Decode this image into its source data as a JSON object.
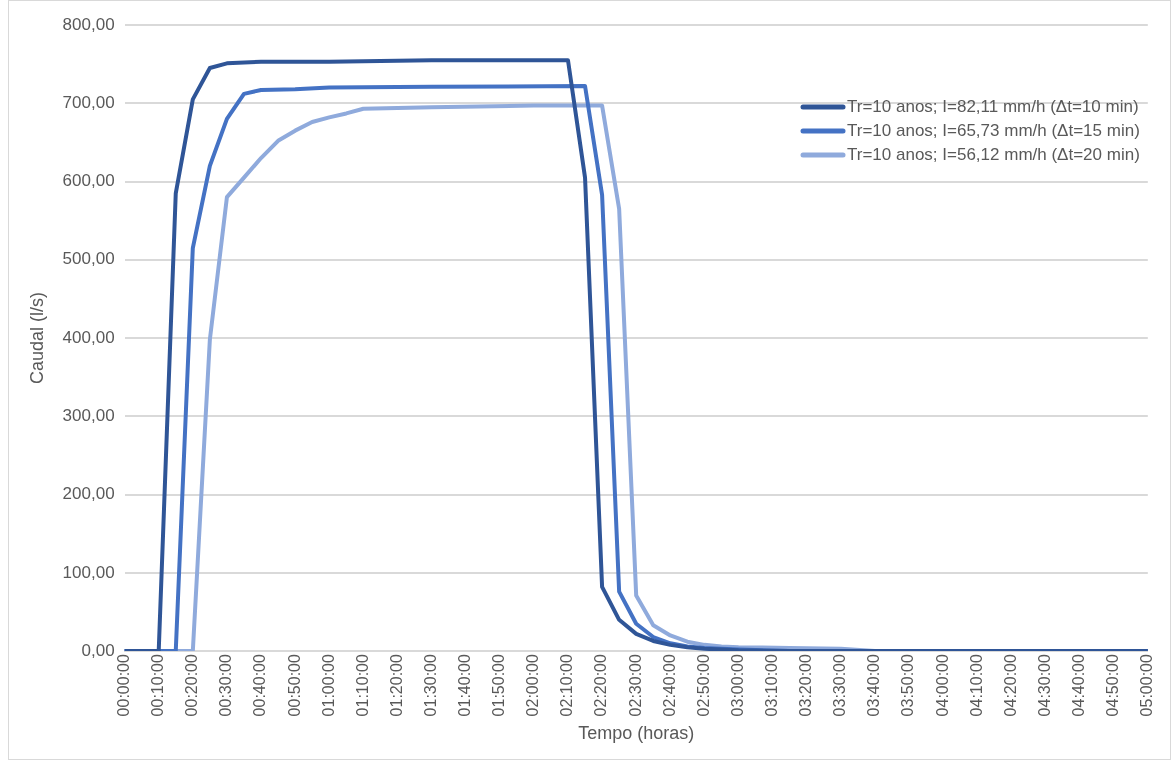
{
  "chart_data": {
    "type": "line",
    "xlabel": "Tempo (horas)",
    "ylabel": "Caudal (l/s)",
    "xlim": [
      0,
      5
    ],
    "xticks": [
      {
        "value": 0,
        "label": "00:00:00"
      },
      {
        "value": 0.16667,
        "label": "00:10:00"
      },
      {
        "value": 0.33333,
        "label": "00:20:00"
      },
      {
        "value": 0.5,
        "label": "00:30:00"
      },
      {
        "value": 0.66667,
        "label": "00:40:00"
      },
      {
        "value": 0.83333,
        "label": "00:50:00"
      },
      {
        "value": 1,
        "label": "01:00:00"
      },
      {
        "value": 1.16667,
        "label": "01:10:00"
      },
      {
        "value": 1.33333,
        "label": "01:20:00"
      },
      {
        "value": 1.5,
        "label": "01:30:00"
      },
      {
        "value": 1.66667,
        "label": "01:40:00"
      },
      {
        "value": 1.83333,
        "label": "01:50:00"
      },
      {
        "value": 2,
        "label": "02:00:00"
      },
      {
        "value": 2.16667,
        "label": "02:10:00"
      },
      {
        "value": 2.33333,
        "label": "02:20:00"
      },
      {
        "value": 2.5,
        "label": "02:30:00"
      },
      {
        "value": 2.66667,
        "label": "02:40:00"
      },
      {
        "value": 2.83333,
        "label": "02:50:00"
      },
      {
        "value": 3,
        "label": "03:00:00"
      },
      {
        "value": 3.16667,
        "label": "03:10:00"
      },
      {
        "value": 3.33333,
        "label": "03:20:00"
      },
      {
        "value": 3.5,
        "label": "03:30:00"
      },
      {
        "value": 3.66667,
        "label": "03:40:00"
      },
      {
        "value": 3.83333,
        "label": "03:50:00"
      },
      {
        "value": 4,
        "label": "04:00:00"
      },
      {
        "value": 4.16667,
        "label": "04:10:00"
      },
      {
        "value": 4.33333,
        "label": "04:20:00"
      },
      {
        "value": 4.5,
        "label": "04:30:00"
      },
      {
        "value": 4.66667,
        "label": "04:40:00"
      },
      {
        "value": 4.83333,
        "label": "04:50:00"
      },
      {
        "value": 5,
        "label": "05:00:00"
      }
    ],
    "ylim": [
      0,
      800
    ],
    "yticks": [
      {
        "value": 0,
        "label": "0,00"
      },
      {
        "value": 100,
        "label": "100,00"
      },
      {
        "value": 200,
        "label": "200,00"
      },
      {
        "value": 300,
        "label": "300,00"
      },
      {
        "value": 400,
        "label": "400,00"
      },
      {
        "value": 500,
        "label": "500,00"
      },
      {
        "value": 600,
        "label": "600,00"
      },
      {
        "value": 700,
        "label": "700,00"
      },
      {
        "value": 800,
        "label": "800,00"
      }
    ],
    "grid": "y",
    "legend": "top right",
    "marker": "none",
    "line_style": "solid",
    "series": [
      {
        "name": "Tr=10 anos; I=82,11 mm/h (Δt=10 min)",
        "color": "#2f5597",
        "x": [
          0,
          0.16667,
          0.25,
          0.33333,
          0.41667,
          0.5,
          0.66667,
          1,
          1.5,
          2.16667,
          2.25,
          2.33333,
          2.41667,
          2.5,
          2.58333,
          2.66667,
          2.75,
          2.83333,
          3,
          3.25,
          5
        ],
        "values": [
          0,
          0,
          585,
          705,
          745,
          751,
          753,
          753,
          755,
          755,
          605,
          82,
          40,
          22,
          13,
          8,
          5,
          3,
          1,
          0,
          0
        ]
      },
      {
        "name": "Tr=10 anos; I=65,73 mm/h (Δt=15 min)",
        "color": "#4472c4",
        "x": [
          0,
          0.25,
          0.33333,
          0.41667,
          0.5,
          0.58333,
          0.66667,
          0.83333,
          1,
          1.5,
          2.25,
          2.33333,
          2.41667,
          2.5,
          2.58333,
          2.66667,
          2.75,
          2.83333,
          3,
          3.25,
          5
        ],
        "values": [
          0,
          0,
          515,
          620,
          680,
          712,
          717,
          718,
          720,
          721,
          722,
          583,
          76,
          35,
          18,
          10,
          6,
          4,
          2,
          0,
          0
        ]
      },
      {
        "name": "Tr=10 anos; I=56,12 mm/h (Δt=20 min)",
        "color": "#8faadc",
        "x": [
          0,
          0.33333,
          0.41667,
          0.5,
          0.58333,
          0.66667,
          0.75,
          0.83333,
          0.91667,
          1,
          1.08333,
          1.16667,
          1.5,
          2,
          2.33333,
          2.41667,
          2.5,
          2.58333,
          2.66667,
          2.75,
          2.83333,
          2.91667,
          3,
          3.25,
          3.5,
          3.66667,
          5
        ],
        "values": [
          0,
          0,
          398,
          580,
          605,
          630,
          652,
          665,
          676,
          682,
          687,
          693,
          695,
          697,
          697,
          565,
          71,
          33,
          20,
          12,
          8,
          6,
          5,
          4,
          3,
          0,
          0
        ]
      }
    ]
  }
}
